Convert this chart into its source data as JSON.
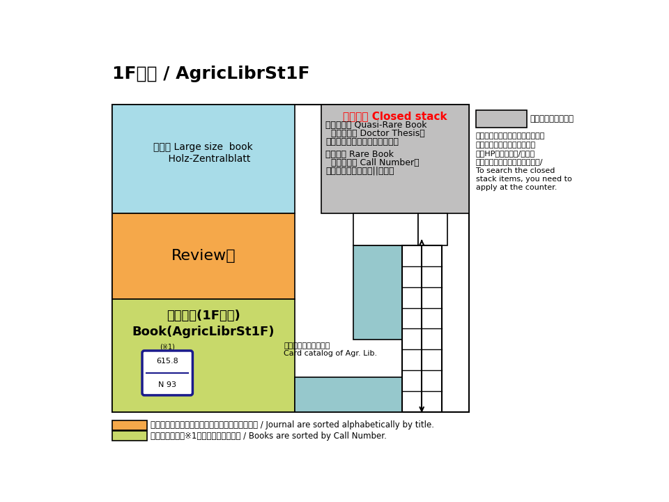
{
  "title": "1F書庫 / AgricLibrSt1F",
  "bg": "#ffffff",
  "light_blue": "#a8dce8",
  "orange": "#f5a84a",
  "light_green": "#c8d96a",
  "gray": "#c0bfbf",
  "teal": "#96c8cc",
  "navy": "#1a1a8c",
  "red": "#ff0000",
  "black": "#000000",
  "white": "#ffffff",
  "closed_title": "閉架書庫 Closed stack",
  "closed_body1_l1": "準貴重資料 Quasi-Rare Book",
  "closed_body1_l2": "（博士論文 Doctor Thesis、",
  "closed_body1_l3": "旧植民地関係資料、松原文獺）",
  "closed_body2_l1": "貴重資料 Rare Book",
  "closed_body2_l2": "（請求記号 Call Number：",
  "closed_body2_l3": "「和綴本」「貴重書||洋」）",
  "large_book_l1": "大型本 Large size  book",
  "large_book_l2": "    Holz-Zentralblatt",
  "review_text": "Review誌",
  "book_l1": "書庫図書(1F書庫)",
  "book_l2": "Book(AgricLibrSt1F)",
  "catalog_l1": "農学部所蔵目録カード",
  "catalog_l2": "Card catalog of Agr. Lib.",
  "info_label": "は、閉架書庫です。",
  "info_body_l1": "カウンターで利用申込をしてくだ",
  "info_body_l2": "さい。利用方法は、農学部図",
  "info_body_l3": "書室HP「貴重資料/準貴重",
  "info_body_l4": "資料の利用」をご覧ください。/",
  "info_body_l5": "To search the closed",
  "info_body_l6": "stack items, you need to",
  "info_body_l7": "apply at the counter.",
  "legend1": "は、タイトルのアルファベット順に並んでいます / Journal are sorted alphabetically by title.",
  "legend2": "は、請求記号（※1）順に並んでいます / Books are sorted by Call Number.",
  "footnote": "（※1）"
}
